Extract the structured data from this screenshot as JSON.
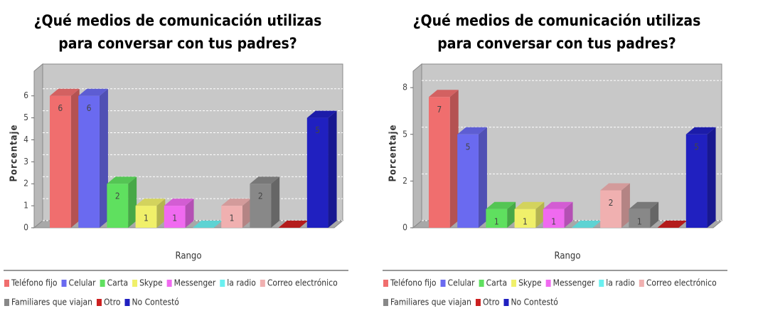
{
  "chart_data": [
    {
      "type": "bar3d",
      "title": "¿Qué medios de comunicación utilizas para conversar con tus padres?",
      "x_label": "Rango",
      "y_label": "Porcentaje",
      "ylim": [
        0,
        6.8
      ],
      "yticks": [
        0,
        1,
        2,
        3,
        4,
        5,
        6
      ],
      "grid": true,
      "series": [
        {
          "name": "Teléfono fijo",
          "color": "#f06e6e",
          "values": [
            6
          ]
        },
        {
          "name": "Celular",
          "color": "#6a6af0",
          "values": [
            6
          ]
        },
        {
          "name": "Carta",
          "color": "#5fe05f",
          "values": [
            2
          ]
        },
        {
          "name": "Skype",
          "color": "#f0f06a",
          "values": [
            1
          ]
        },
        {
          "name": "Messenger",
          "color": "#f06af0",
          "values": [
            1
          ]
        },
        {
          "name": "la radio",
          "color": "#6af0f0",
          "values": [
            0
          ]
        },
        {
          "name": "Correo electrónico",
          "color": "#f0b0b0",
          "values": [
            1
          ]
        },
        {
          "name": "Familiares que viajan",
          "color": "#888888",
          "values": [
            2
          ]
        },
        {
          "name": "Otro",
          "color": "#cc2020",
          "values": [
            0
          ]
        },
        {
          "name": "No Contestó",
          "color": "#2020c0",
          "values": [
            5
          ]
        }
      ]
    },
    {
      "type": "bar3d",
      "title": "¿Qué medios de comunicación utilizas para conversar con tus padres?",
      "x_label": "Rango",
      "y_label": "Porcentaje",
      "ylim": [
        0,
        8
      ],
      "yticks": [
        0,
        {
          "value": 2.5,
          "label": "2"
        },
        5,
        {
          "value": 7.5,
          "label": "8"
        }
      ],
      "grid": true,
      "series": [
        {
          "name": "Teléfono fijo",
          "color": "#f06e6e",
          "values": [
            7
          ]
        },
        {
          "name": "Celular",
          "color": "#6a6af0",
          "values": [
            5
          ]
        },
        {
          "name": "Carta",
          "color": "#5fe05f",
          "values": [
            1
          ]
        },
        {
          "name": "Skype",
          "color": "#f0f06a",
          "values": [
            1
          ]
        },
        {
          "name": "Messenger",
          "color": "#f06af0",
          "values": [
            1
          ]
        },
        {
          "name": "la radio",
          "color": "#6af0f0",
          "values": [
            0
          ]
        },
        {
          "name": "Correo electrónico",
          "color": "#f0b0b0",
          "values": [
            2
          ]
        },
        {
          "name": "Familiares que viajan",
          "color": "#888888",
          "values": [
            1
          ]
        },
        {
          "name": "Otro",
          "color": "#cc2020",
          "values": [
            0
          ]
        },
        {
          "name": "No Contestó",
          "color": "#2020c0",
          "values": [
            5
          ]
        }
      ]
    }
  ]
}
